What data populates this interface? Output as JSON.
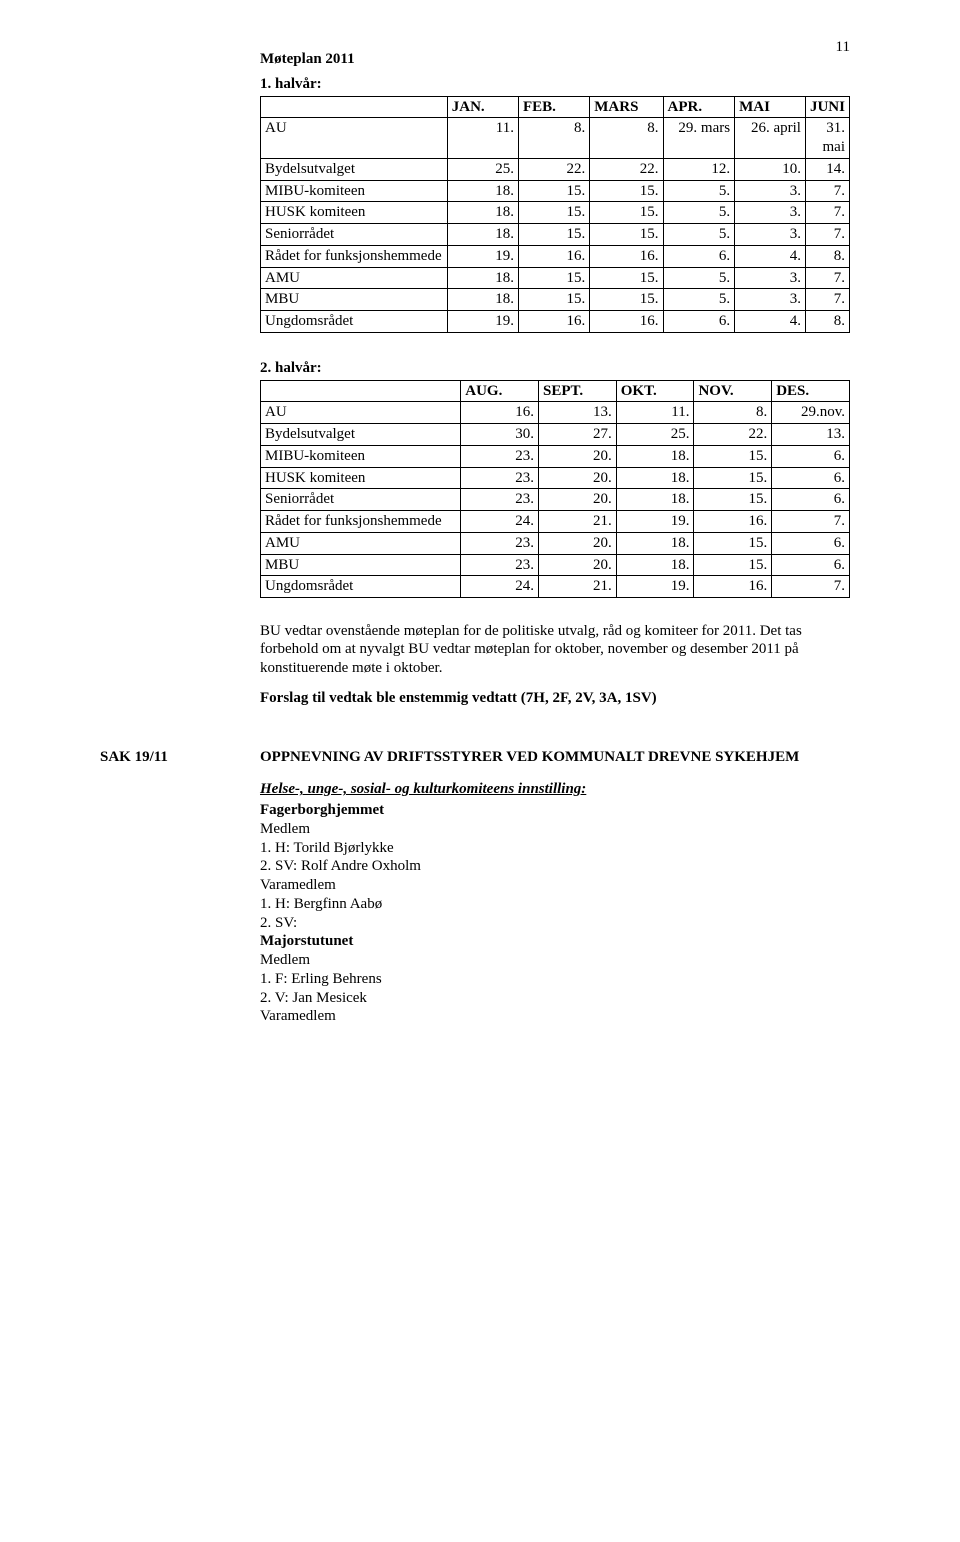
{
  "page_number": "11",
  "title": "Møteplan 2011",
  "h1": {
    "heading": "1. halvår:",
    "columns": [
      "",
      "JAN.",
      "FEB.",
      "MARS",
      "APR.",
      "MAI",
      "JUNI"
    ],
    "rows": [
      [
        "AU",
        "11.",
        "8.",
        "8.",
        "29. mars",
        "26. april",
        "31. mai"
      ],
      [
        "Bydelsutvalget",
        "25.",
        "22.",
        "22.",
        "12.",
        "10.",
        "14."
      ],
      [
        "MIBU-komiteen",
        "18.",
        "15.",
        "15.",
        "5.",
        "3.",
        "7."
      ],
      [
        "HUSK komiteen",
        "18.",
        "15.",
        "15.",
        "5.",
        "3.",
        "7."
      ],
      [
        "Seniorrådet",
        "18.",
        "15.",
        "15.",
        "5.",
        "3.",
        "7."
      ],
      [
        "Rådet for funksjonshemmede",
        "19.",
        "16.",
        "16.",
        "6.",
        "4.",
        "8."
      ],
      [
        "AMU",
        "18.",
        "15.",
        "15.",
        "5.",
        "3.",
        "7."
      ],
      [
        "MBU",
        "18.",
        "15.",
        "15.",
        "5.",
        "3.",
        "7."
      ],
      [
        "Ungdomsrådet",
        "19.",
        "16.",
        "16.",
        "6.",
        "4.",
        "8."
      ]
    ]
  },
  "h2": {
    "heading": "2. halvår:",
    "columns": [
      "",
      "AUG.",
      "SEPT.",
      "OKT.",
      "NOV.",
      "DES."
    ],
    "rows": [
      [
        "AU",
        "16.",
        "13.",
        "11.",
        "8.",
        "29.nov."
      ],
      [
        "Bydelsutvalget",
        "30.",
        "27.",
        "25.",
        "22.",
        "13."
      ],
      [
        "MIBU-komiteen",
        "23.",
        "20.",
        "18.",
        "15.",
        "6."
      ],
      [
        "HUSK komiteen",
        "23.",
        "20.",
        "18.",
        "15.",
        "6."
      ],
      [
        "Seniorrådet",
        "23.",
        "20.",
        "18.",
        "15.",
        "6."
      ],
      [
        "Rådet for funksjonshemmede",
        "24.",
        "21.",
        "19.",
        "16.",
        "7."
      ],
      [
        "AMU",
        "23.",
        "20.",
        "18.",
        "15.",
        "6."
      ],
      [
        "MBU",
        "23.",
        "20.",
        "18.",
        "15.",
        "6."
      ],
      [
        "Ungdomsrådet",
        "24.",
        "21.",
        "19.",
        "16.",
        "7."
      ]
    ]
  },
  "para1": "BU vedtar ovenstående møteplan for de politiske utvalg, råd og komiteer for 2011. Det tas forbehold om at nyvalgt BU vedtar møteplan for oktober, november og desember 2011 på konstituerende møte i oktober.",
  "para2": "Forslag til vedtak ble enstemmig vedtatt (7H, 2F, 2V, 3A, 1SV)",
  "sak": {
    "label": "SAK  19/11",
    "title": "OPPNEVNING AV DRIFTSSTYRER VED KOMMUNALT DREVNE SYKEHJEM",
    "innstilling_head": "Helse-, unge-, sosial- og kulturkomiteens innstilling:",
    "l1_title": "Fagerborghjemmet",
    "l1_m": "Medlem",
    "l1_1": "1. H: Torild Bjørlykke",
    "l1_2": "2. SV: Rolf Andre Oxholm",
    "l1_v": "Varamedlem",
    "l1_v1": "1. H: Bergfinn Aabø",
    "l1_v2": "2. SV:",
    "l2_title": "Majorstutunet",
    "l2_m": "Medlem",
    "l2_1": "1. F: Erling Behrens",
    "l2_2": "2. V: Jan Mesicek",
    "l2_v": "Varamedlem"
  }
}
